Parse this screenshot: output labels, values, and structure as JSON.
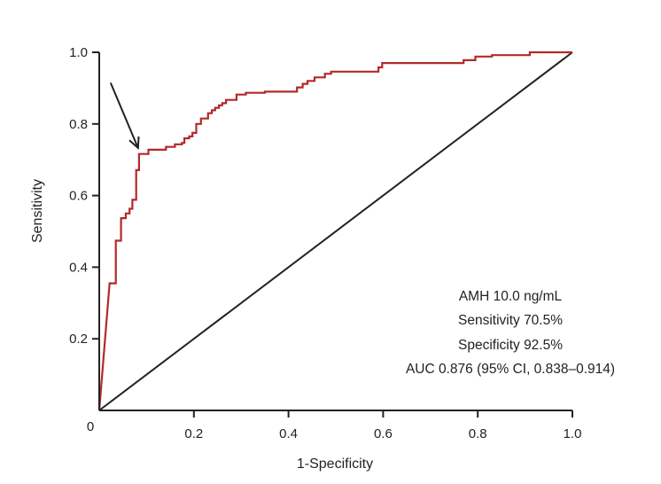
{
  "chart_data": {
    "type": "line",
    "xlabel": "1-Specificity",
    "ylabel": "Sensitivity",
    "xlim": [
      0,
      1
    ],
    "ylim": [
      0,
      1
    ],
    "x_ticks": [
      "0.2",
      "0.4",
      "0.6",
      "0.8",
      "1.0"
    ],
    "y_ticks": [
      "0.2",
      "0.4",
      "0.6",
      "0.8",
      "1.0"
    ],
    "origin_label": "0",
    "grid": false,
    "colors": {
      "roc": "#b22a2a",
      "reference": "#222222",
      "axis": "#222222"
    },
    "series": [
      {
        "points": [
          [
            0.0,
            0.0
          ],
          [
            0.022,
            0.355
          ],
          [
            0.035,
            0.355
          ],
          [
            0.035,
            0.474
          ],
          [
            0.046,
            0.474
          ],
          [
            0.046,
            0.537
          ],
          [
            0.056,
            0.537
          ],
          [
            0.056,
            0.55
          ],
          [
            0.064,
            0.55
          ],
          [
            0.064,
            0.563
          ],
          [
            0.07,
            0.563
          ],
          [
            0.07,
            0.588
          ],
          [
            0.078,
            0.588
          ],
          [
            0.078,
            0.671
          ],
          [
            0.084,
            0.671
          ],
          [
            0.084,
            0.716
          ],
          [
            0.104,
            0.716
          ],
          [
            0.104,
            0.728
          ],
          [
            0.141,
            0.728
          ],
          [
            0.141,
            0.736
          ],
          [
            0.16,
            0.736
          ],
          [
            0.16,
            0.743
          ],
          [
            0.175,
            0.743
          ],
          [
            0.175,
            0.747
          ],
          [
            0.18,
            0.747
          ],
          [
            0.18,
            0.76
          ],
          [
            0.19,
            0.76
          ],
          [
            0.19,
            0.765
          ],
          [
            0.197,
            0.765
          ],
          [
            0.197,
            0.775
          ],
          [
            0.205,
            0.775
          ],
          [
            0.205,
            0.8
          ],
          [
            0.215,
            0.8
          ],
          [
            0.215,
            0.815
          ],
          [
            0.23,
            0.815
          ],
          [
            0.23,
            0.83
          ],
          [
            0.238,
            0.83
          ],
          [
            0.238,
            0.838
          ],
          [
            0.245,
            0.838
          ],
          [
            0.245,
            0.845
          ],
          [
            0.253,
            0.845
          ],
          [
            0.253,
            0.852
          ],
          [
            0.26,
            0.852
          ],
          [
            0.26,
            0.858
          ],
          [
            0.268,
            0.858
          ],
          [
            0.268,
            0.867
          ],
          [
            0.29,
            0.867
          ],
          [
            0.29,
            0.882
          ],
          [
            0.31,
            0.882
          ],
          [
            0.31,
            0.887
          ],
          [
            0.35,
            0.887
          ],
          [
            0.35,
            0.89
          ],
          [
            0.418,
            0.89
          ],
          [
            0.418,
            0.902
          ],
          [
            0.43,
            0.902
          ],
          [
            0.43,
            0.912
          ],
          [
            0.44,
            0.912
          ],
          [
            0.44,
            0.92
          ],
          [
            0.455,
            0.92
          ],
          [
            0.455,
            0.93
          ],
          [
            0.477,
            0.93
          ],
          [
            0.477,
            0.94
          ],
          [
            0.49,
            0.94
          ],
          [
            0.49,
            0.946
          ],
          [
            0.59,
            0.946
          ],
          [
            0.59,
            0.958
          ],
          [
            0.598,
            0.958
          ],
          [
            0.598,
            0.97
          ],
          [
            0.77,
            0.97
          ],
          [
            0.77,
            0.978
          ],
          [
            0.795,
            0.978
          ],
          [
            0.795,
            0.988
          ],
          [
            0.83,
            0.988
          ],
          [
            0.83,
            0.992
          ],
          [
            0.91,
            0.992
          ],
          [
            0.91,
            1.0
          ],
          [
            1.0,
            1.0
          ]
        ]
      }
    ],
    "reference_line": [
      [
        0,
        0
      ],
      [
        1,
        1
      ]
    ],
    "arrow": {
      "from": [
        0.024,
        0.915
      ],
      "to": [
        0.082,
        0.733
      ]
    },
    "annotations": [
      "AMH 10.0 ng/mL",
      "Sensitivity 70.5%",
      "Specificity 92.5%",
      "AUC 0.876 (95% CI, 0.838–0.914)"
    ]
  }
}
